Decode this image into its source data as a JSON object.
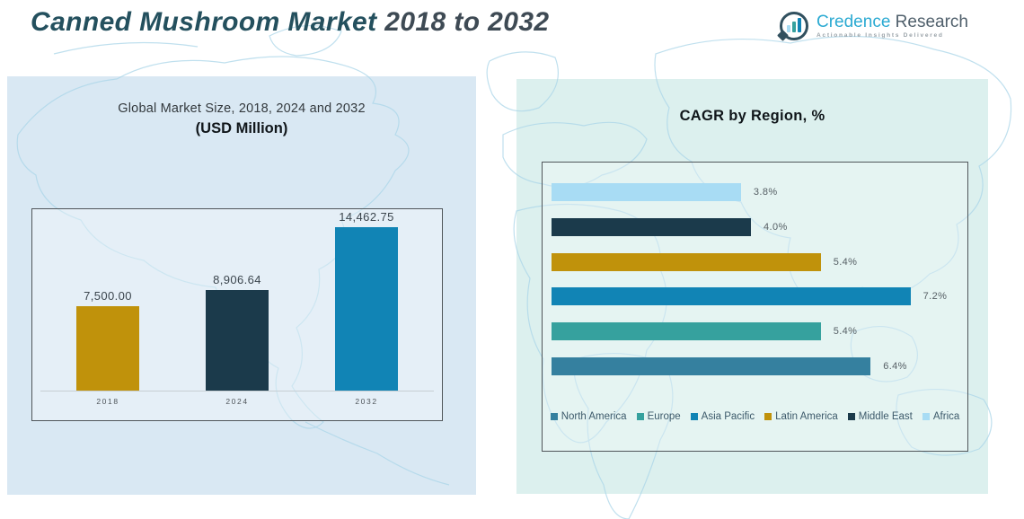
{
  "header": {
    "title_main": "Canned Mushroom Market",
    "title_years": " 2018 to 2032"
  },
  "logo": {
    "brand_primary": "Credence",
    "brand_secondary": " Research",
    "tagline": "Actionable Insights Delivered",
    "icon": "bar-chart-in-speech-bubble",
    "icon_ring_color": "#31505f",
    "icon_bar_colors": [
      "#a8dcf4",
      "#36a19e",
      "#1184b5"
    ]
  },
  "colors": {
    "panel_left_bg": "#d9e8f3",
    "panel_right_bg": "#dcf0ee",
    "map_line": "#abd6e9",
    "gold": "#c0920b",
    "dark_navy": "#1b3a4b",
    "blue": "#1184b5",
    "teal": "#36a19e",
    "steel_blue": "#35809f",
    "light_blue": "#a8dcf4"
  },
  "chart_data": [
    {
      "type": "bar",
      "orientation": "vertical",
      "title": "Global Market Size, 2018, 2024 and 2032",
      "subtitle": "(USD Million)",
      "categories": [
        "2018",
        "2024",
        "2032"
      ],
      "values": [
        7500.0,
        8906.64,
        14462.75
      ],
      "value_labels": [
        "7,500.00",
        "8,906.64",
        "14,462.75"
      ],
      "bar_colors": [
        "#c0920b",
        "#1b3a4b",
        "#1184b5"
      ],
      "ylim": [
        0,
        15000
      ],
      "grid": false,
      "legend_position": "none"
    },
    {
      "type": "bar",
      "orientation": "horizontal",
      "title": "CAGR by Region, %",
      "categories": [
        "Africa",
        "Middle East",
        "Latin America",
        "Asia Pacific",
        "Europe",
        "North America"
      ],
      "values": [
        3.8,
        4.0,
        5.4,
        7.2,
        5.4,
        6.4
      ],
      "value_labels": [
        "3.8%",
        "4.0%",
        "5.4%",
        "7.2%",
        "5.4%",
        "6.4%"
      ],
      "bar_colors": [
        "#a8dcf4",
        "#1b3a4b",
        "#c0920b",
        "#1184b5",
        "#36a19e",
        "#35809f"
      ],
      "xlim": [
        0,
        8
      ],
      "grid": false,
      "legend_position": "bottom",
      "legend": [
        {
          "label": "North America",
          "color": "#35809f"
        },
        {
          "label": "Europe",
          "color": "#36a19e"
        },
        {
          "label": "Asia Pacific",
          "color": "#1184b5"
        },
        {
          "label": "Latin America",
          "color": "#c0920b"
        },
        {
          "label": "Middle East",
          "color": "#1b3a4b"
        },
        {
          "label": "Africa",
          "color": "#a8dcf4"
        }
      ]
    }
  ]
}
